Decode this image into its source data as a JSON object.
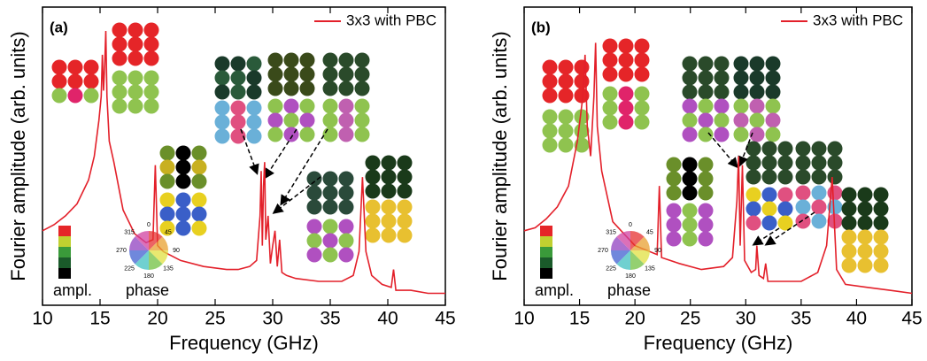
{
  "chart_data": [
    {
      "type": "line",
      "panel_label": "(a)",
      "x_label": "Frequency (GHz)",
      "y_label": "Fourier amplitude (arb. units)",
      "xlim": [
        10,
        45
      ],
      "xticks": [
        10,
        15,
        20,
        25,
        30,
        35,
        40,
        45
      ],
      "ylim": [
        0,
        100
      ],
      "legend": "upper right",
      "colorbar_label": "ampl.",
      "wheel_label": "phase",
      "wheel_ticks": [
        "0",
        "45",
        "90",
        "135",
        "180",
        "225",
        "270",
        "315"
      ],
      "x": [
        10,
        11,
        12,
        13,
        14,
        14.5,
        14.9,
        15.1,
        15.2,
        15.3,
        15.4,
        15.5,
        15.6,
        15.8,
        16.2,
        17,
        18,
        19,
        19.6,
        19.8,
        20.0,
        20.5,
        22,
        24,
        26,
        27,
        28,
        28.6,
        28.9,
        29.0,
        29.1,
        29.2,
        29.3,
        29.4,
        29.6,
        29.8,
        30.0,
        30.2,
        30.4,
        30.6,
        30.8,
        31.2,
        32,
        34,
        36,
        37,
        37.5,
        37.8,
        38.1,
        38.6,
        39.5,
        40.3,
        40.5,
        40.7,
        42,
        43.5,
        45
      ],
      "series": [
        {
          "name": "3x3 with PBC",
          "color": "#e3202a",
          "values": [
            25,
            27,
            30,
            34,
            42,
            50,
            62,
            70,
            84,
            72,
            80,
            92,
            70,
            55,
            48,
            32,
            24,
            21,
            22,
            47,
            20,
            18,
            15,
            13,
            12,
            12,
            13,
            15,
            30,
            45,
            20,
            40,
            48,
            22,
            30,
            14,
            20,
            25,
            13,
            22,
            11,
            10,
            9,
            8,
            8,
            10,
            18,
            43,
            18,
            10,
            7,
            6,
            12,
            5,
            5,
            4,
            4
          ]
        }
      ]
    },
    {
      "type": "line",
      "panel_label": "(b)",
      "x_label": "Frequency (GHz)",
      "y_label": "Fourier amplitude (arb. units)",
      "xlim": [
        10,
        45
      ],
      "xticks": [
        10,
        15,
        20,
        25,
        30,
        35,
        40,
        45
      ],
      "ylim": [
        0,
        100
      ],
      "legend": "upper right",
      "colorbar_label": "ampl.",
      "wheel_label": "phase",
      "wheel_ticks": [
        "0",
        "45",
        "90",
        "135",
        "180",
        "225",
        "270",
        "315"
      ],
      "x": [
        10,
        11,
        12,
        13,
        14,
        14.8,
        15.3,
        15.5,
        15.7,
        16.0,
        16.3,
        16.45,
        16.6,
        17,
        18,
        20,
        22,
        22.2,
        22.4,
        24,
        26,
        28,
        28.8,
        29.2,
        29.35,
        29.5,
        29.7,
        29.9,
        30.5,
        30.9,
        31.0,
        31.2,
        31.6,
        31.8,
        32.0,
        33,
        35,
        36.5,
        37.3,
        37.8,
        38.2,
        39,
        41,
        43,
        45
      ],
      "series": [
        {
          "name": "3x3 with PBC",
          "color": "#e3202a",
          "values": [
            25,
            26,
            29,
            33,
            40,
            55,
            70,
            84,
            60,
            50,
            70,
            88,
            60,
            45,
            28,
            20,
            17,
            40,
            16,
            14,
            12,
            13,
            16,
            35,
            50,
            20,
            47,
            15,
            11,
            12,
            20,
            10,
            9,
            14,
            8,
            8,
            8,
            11,
            20,
            43,
            12,
            7,
            6,
            5,
            4
          ]
        }
      ]
    }
  ]
}
